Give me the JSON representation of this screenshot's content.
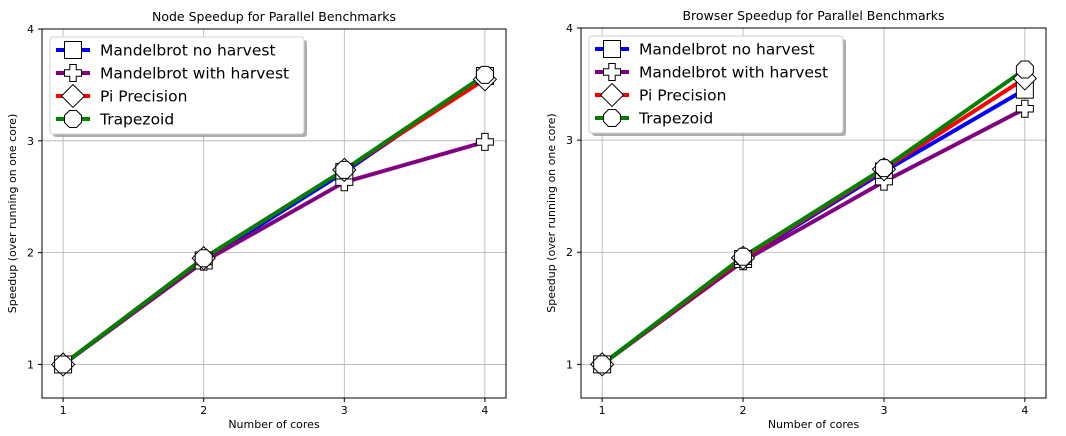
{
  "chart_data": [
    {
      "type": "line",
      "title": "Node Speedup for Parallel Benchmarks",
      "xlabel": "Number of cores",
      "ylabel": "Speedup (over running on one core)",
      "x": [
        1,
        2,
        3,
        4
      ],
      "xticks": [
        "1",
        "2",
        "3",
        "4"
      ],
      "yticks": [
        "1",
        "2",
        "3",
        "4"
      ],
      "xlim": [
        0.85,
        4.15
      ],
      "ylim": [
        0.7,
        4.0
      ],
      "grid": true,
      "legend_position": "top-left",
      "series": [
        {
          "name": "Mandelbrot no harvest",
          "color": "#0000ff",
          "marker": "square",
          "values": [
            1.0,
            1.93,
            2.72,
            3.58
          ]
        },
        {
          "name": "Mandelbrot with harvest",
          "color": "#800080",
          "marker": "plus",
          "values": [
            1.0,
            1.92,
            2.63,
            2.99
          ]
        },
        {
          "name": "Pi Precision",
          "color": "#ff0000",
          "marker": "diamond",
          "values": [
            1.0,
            1.95,
            2.74,
            3.55
          ]
        },
        {
          "name": "Trapezoid",
          "color": "#008000",
          "marker": "octagon",
          "values": [
            1.0,
            1.95,
            2.74,
            3.59
          ]
        }
      ]
    },
    {
      "type": "line",
      "title": "Browser Speedup for Parallel Benchmarks",
      "xlabel": "Number of cores",
      "ylabel": "Speedup (over running on one core)",
      "x": [
        1,
        2,
        3,
        4
      ],
      "xticks": [
        "1",
        "2",
        "3",
        "4"
      ],
      "yticks": [
        "1",
        "2",
        "3",
        "4"
      ],
      "xlim": [
        0.85,
        4.15
      ],
      "ylim": [
        0.7,
        4.0
      ],
      "grid": true,
      "legend_position": "top-left",
      "series": [
        {
          "name": "Mandelbrot no harvest",
          "color": "#0000ff",
          "marker": "square",
          "values": [
            1.0,
            1.94,
            2.72,
            3.45
          ]
        },
        {
          "name": "Mandelbrot with harvest",
          "color": "#800080",
          "marker": "plus",
          "values": [
            1.0,
            1.92,
            2.63,
            3.28
          ]
        },
        {
          "name": "Pi Precision",
          "color": "#ff0000",
          "marker": "diamond",
          "values": [
            1.0,
            1.95,
            2.74,
            3.55
          ]
        },
        {
          "name": "Trapezoid",
          "color": "#008000",
          "marker": "octagon",
          "values": [
            1.0,
            1.96,
            2.75,
            3.63
          ]
        }
      ]
    }
  ]
}
